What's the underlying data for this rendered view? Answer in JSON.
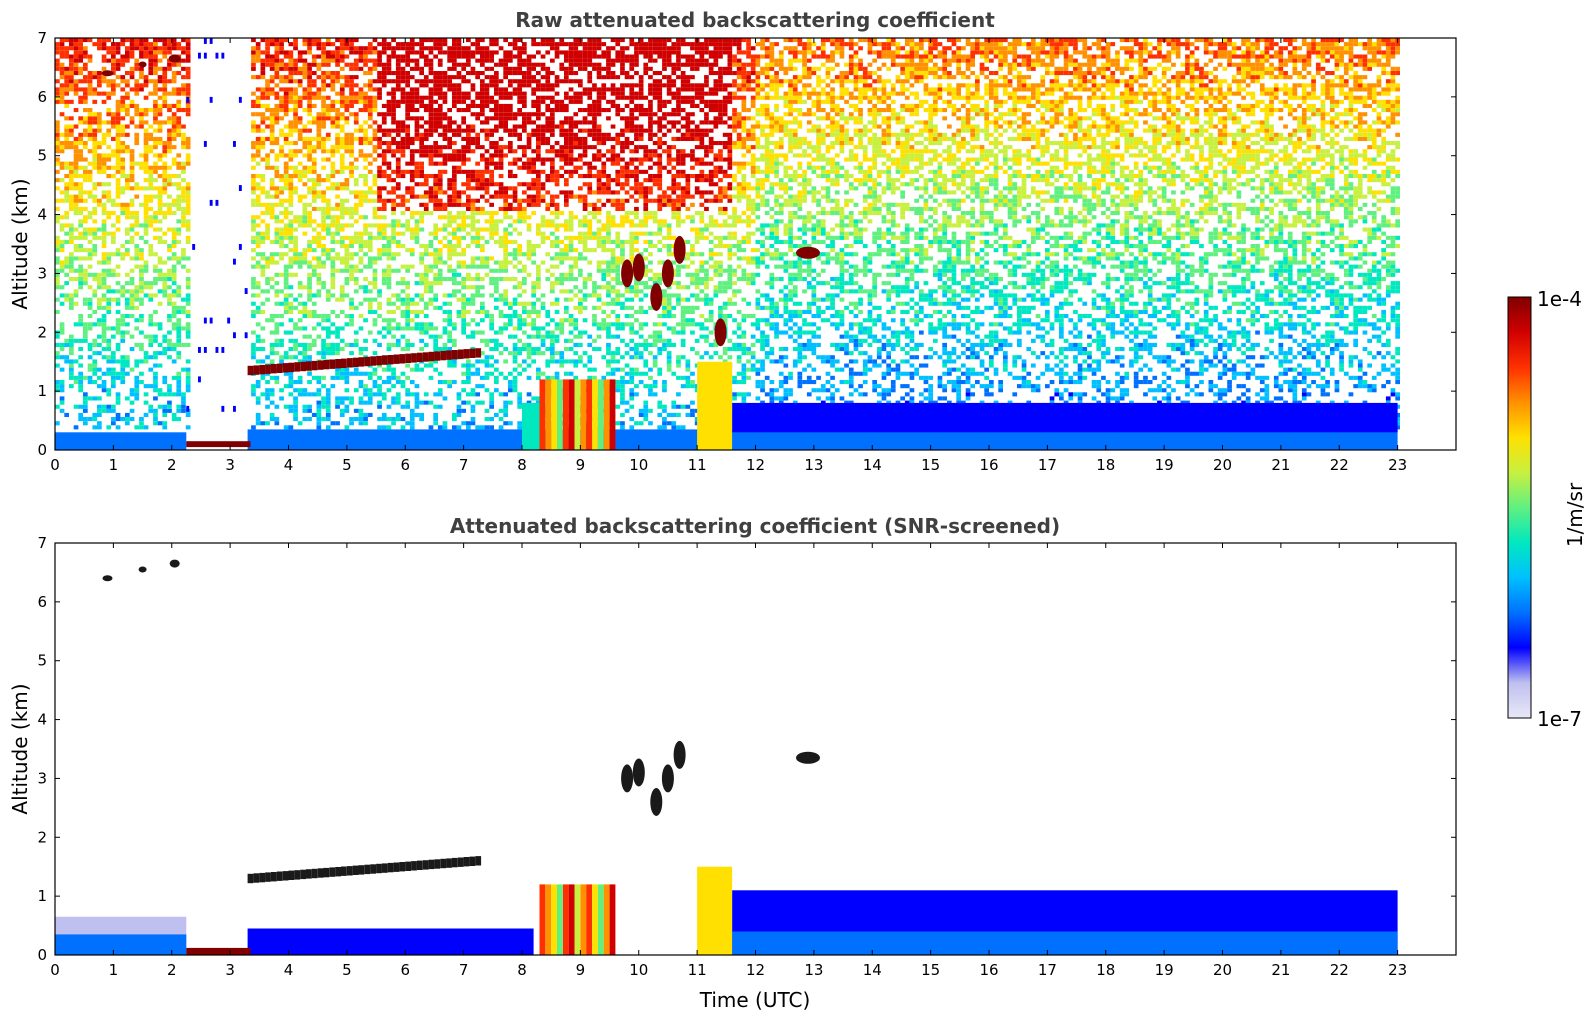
{
  "chart_data": [
    {
      "type": "heatmap",
      "title": "Raw attenuated backscattering coefficient",
      "xlabel": "",
      "ylabel": "Altitude (km)",
      "xlim": [
        0,
        24
      ],
      "ylim": [
        0,
        7
      ],
      "xticks": [
        0,
        1,
        2,
        3,
        4,
        5,
        6,
        7,
        8,
        9,
        10,
        11,
        12,
        13,
        14,
        15,
        16,
        17,
        18,
        19,
        20,
        21,
        22,
        23
      ],
      "yticks": [
        0,
        1,
        2,
        3,
        4,
        5,
        6,
        7
      ],
      "data_end_time": 23,
      "colorbar": "shared",
      "features": [
        {
          "kind": "noisy_background",
          "t_start": 0,
          "t_end": 23
        },
        {
          "kind": "boundary_layer",
          "t_start": 0,
          "t_end": 23,
          "top_km": 0.3
        },
        {
          "kind": "rain_gap",
          "t_start": 2.25,
          "t_end": 3.35
        },
        {
          "kind": "elevated_layer",
          "t_start": 3.3,
          "t_end": 7.2,
          "alt_start_km": 1.35,
          "alt_end_km": 1.65
        },
        {
          "kind": "precipitation",
          "t_start": 8.3,
          "t_end": 9.6
        },
        {
          "kind": "convective_cloud",
          "t_start": 9.6,
          "t_end": 11.6,
          "top_km": 3.4
        },
        {
          "kind": "isolated_cloud",
          "t": 12.9,
          "alt_km": 3.35
        }
      ]
    },
    {
      "type": "heatmap",
      "title": "Attenuated backscattering coefficient (SNR-screened)",
      "xlabel": "Time (UTC)",
      "ylabel": "Altitude (km)",
      "xlim": [
        0,
        24
      ],
      "ylim": [
        0,
        7
      ],
      "xticks": [
        0,
        1,
        2,
        3,
        4,
        5,
        6,
        7,
        8,
        9,
        10,
        11,
        12,
        13,
        14,
        15,
        16,
        17,
        18,
        19,
        20,
        21,
        22,
        23
      ],
      "yticks": [
        0,
        1,
        2,
        3,
        4,
        5,
        6,
        7
      ],
      "data_end_time": 23,
      "colorbar": "shared"
    }
  ],
  "colorbar": {
    "label": "1/m/sr",
    "max_label": "1e-4",
    "min_label": "1e-7",
    "scale": "log",
    "range": [
      1e-07,
      0.0001
    ],
    "colormap": [
      "#e8e8f8",
      "#c0c0f0",
      "#0000ff",
      "#0070ff",
      "#00c0ff",
      "#00e8c0",
      "#60f080",
      "#c8f040",
      "#ffe000",
      "#ff9000",
      "#ff3000",
      "#d00000",
      "#800000"
    ]
  }
}
